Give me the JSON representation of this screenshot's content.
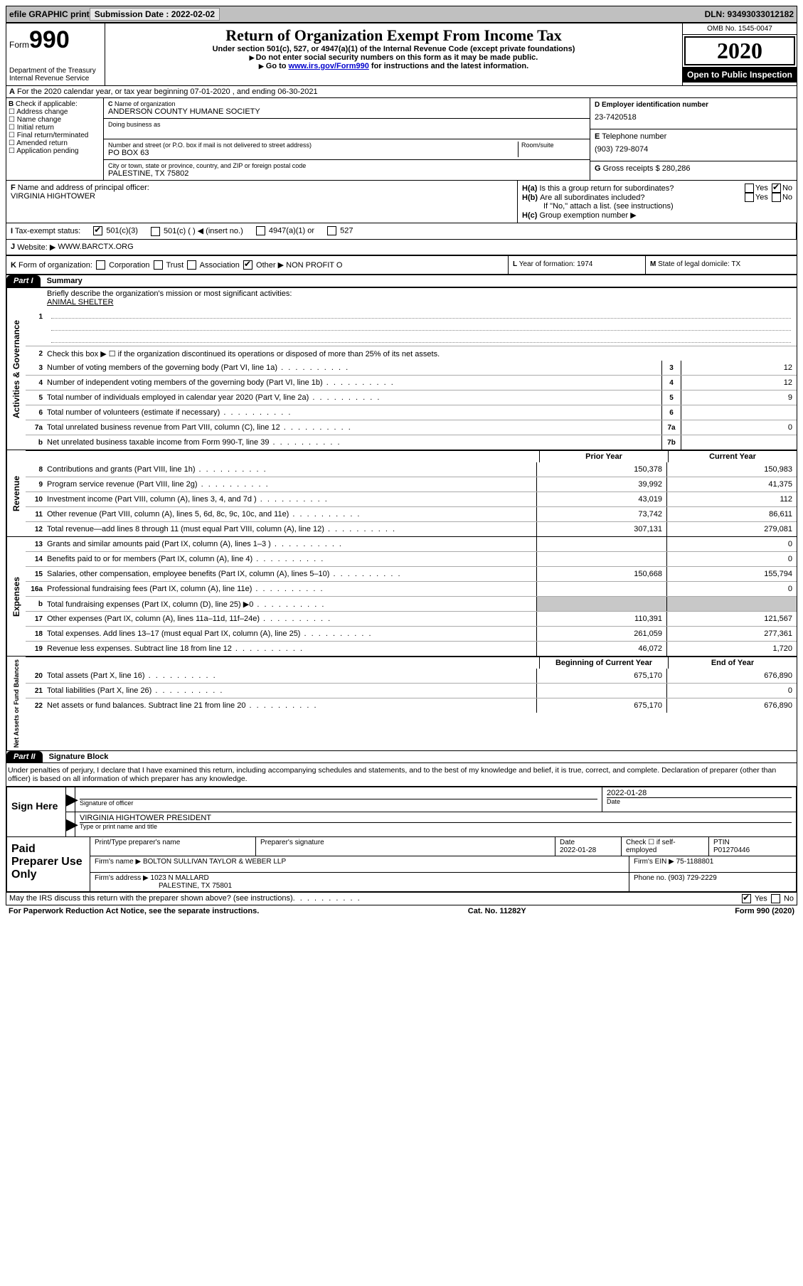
{
  "topbar": {
    "efile": "efile GRAPHIC print",
    "submission_label": "Submission Date : 2022-02-02",
    "dln_label": "DLN: 93493033012182"
  },
  "header": {
    "form_label": "Form",
    "form_number": "990",
    "dept": "Department of the Treasury Internal Revenue Service",
    "title": "Return of Organization Exempt From Income Tax",
    "subtitle": "Under section 501(c), 527, or 4947(a)(1) of the Internal Revenue Code (except private foundations)",
    "note1": "Do not enter social security numbers on this form as it may be made public.",
    "note2_pre": "Go to ",
    "note2_link": "www.irs.gov/Form990",
    "note2_post": " for instructions and the latest information.",
    "omb": "OMB No. 1545-0047",
    "year": "2020",
    "open_public": "Open to Public Inspection"
  },
  "lineA": "For the 2020 calendar year, or tax year beginning 07-01-2020   , and ending 06-30-2021",
  "boxB": {
    "label": "Check if applicable:",
    "opts": [
      "Address change",
      "Name change",
      "Initial return",
      "Final return/terminated",
      "Amended return",
      "Application pending"
    ]
  },
  "boxC": {
    "name_label": "Name of organization",
    "name": "ANDERSON COUNTY HUMANE SOCIETY",
    "dba_label": "Doing business as",
    "street_label": "Number and street (or P.O. box if mail is not delivered to street address)",
    "room_label": "Room/suite",
    "street": "PO BOX 63",
    "city_label": "City or town, state or province, country, and ZIP or foreign postal code",
    "city": "PALESTINE, TX  75802"
  },
  "boxD": {
    "label": "Employer identification number",
    "value": "23-7420518"
  },
  "boxE": {
    "label": "Telephone number",
    "value": "(903) 729-8074"
  },
  "boxG": {
    "label": "Gross receipts $",
    "value": "280,286"
  },
  "boxF": {
    "label": "Name and address of principal officer:",
    "value": "VIRGINIA HIGHTOWER"
  },
  "boxH": {
    "a": "Is this a group return for subordinates?",
    "b": "Are all subordinates included?",
    "b_note": "If \"No,\" attach a list. (see instructions)",
    "c": "Group exemption number ▶",
    "yes": "Yes",
    "no": "No"
  },
  "boxI": {
    "label": "Tax-exempt status:",
    "c3": "501(c)(3)",
    "c": "501(c) (   ) ◀ (insert no.)",
    "a1": "4947(a)(1) or",
    "s527": "527"
  },
  "boxJ": {
    "label": "Website: ▶",
    "value": "WWW.BARCTX.ORG"
  },
  "boxK": {
    "label": "Form of organization:",
    "corp": "Corporation",
    "trust": "Trust",
    "assoc": "Association",
    "other": "Other ▶",
    "other_val": "NON PROFIT O"
  },
  "boxL": {
    "label": "Year of formation:",
    "value": "1974"
  },
  "boxM": {
    "label": "State of legal domicile:",
    "value": "TX"
  },
  "part1": {
    "tag": "Part I",
    "title": "Summary"
  },
  "summary": {
    "q1": "Briefly describe the organization's mission or most significant activities:",
    "q1_val": "ANIMAL SHELTER",
    "q2": "Check this box ▶ ☐  if the organization discontinued its operations or disposed of more than 25% of its net assets.",
    "lines_single": [
      {
        "n": "3",
        "t": "Number of voting members of the governing body (Part VI, line 1a)",
        "box": "3",
        "v": "12"
      },
      {
        "n": "4",
        "t": "Number of independent voting members of the governing body (Part VI, line 1b)",
        "box": "4",
        "v": "12"
      },
      {
        "n": "5",
        "t": "Total number of individuals employed in calendar year 2020 (Part V, line 2a)",
        "box": "5",
        "v": "9"
      },
      {
        "n": "6",
        "t": "Total number of volunteers (estimate if necessary)",
        "box": "6",
        "v": ""
      },
      {
        "n": "7a",
        "t": "Total unrelated business revenue from Part VIII, column (C), line 12",
        "box": "7a",
        "v": "0"
      },
      {
        "n": "b",
        "t": "Net unrelated business taxable income from Form 990-T, line 39",
        "box": "7b",
        "v": ""
      }
    ],
    "colhdr_prior": "Prior Year",
    "colhdr_current": "Current Year",
    "revenue": [
      {
        "n": "8",
        "t": "Contributions and grants (Part VIII, line 1h)",
        "p": "150,378",
        "c": "150,983"
      },
      {
        "n": "9",
        "t": "Program service revenue (Part VIII, line 2g)",
        "p": "39,992",
        "c": "41,375"
      },
      {
        "n": "10",
        "t": "Investment income (Part VIII, column (A), lines 3, 4, and 7d )",
        "p": "43,019",
        "c": "112"
      },
      {
        "n": "11",
        "t": "Other revenue (Part VIII, column (A), lines 5, 6d, 8c, 9c, 10c, and 11e)",
        "p": "73,742",
        "c": "86,611"
      },
      {
        "n": "12",
        "t": "Total revenue—add lines 8 through 11 (must equal Part VIII, column (A), line 12)",
        "p": "307,131",
        "c": "279,081"
      }
    ],
    "expenses": [
      {
        "n": "13",
        "t": "Grants and similar amounts paid (Part IX, column (A), lines 1–3 )",
        "p": "",
        "c": "0"
      },
      {
        "n": "14",
        "t": "Benefits paid to or for members (Part IX, column (A), line 4)",
        "p": "",
        "c": "0"
      },
      {
        "n": "15",
        "t": "Salaries, other compensation, employee benefits (Part IX, column (A), lines 5–10)",
        "p": "150,668",
        "c": "155,794"
      },
      {
        "n": "16a",
        "t": "Professional fundraising fees (Part IX, column (A), line 11e)",
        "p": "",
        "c": "0"
      },
      {
        "n": "b",
        "t": "Total fundraising expenses (Part IX, column (D), line 25) ▶0",
        "p": "SHADE",
        "c": "SHADE"
      },
      {
        "n": "17",
        "t": "Other expenses (Part IX, column (A), lines 11a–11d, 11f–24e)",
        "p": "110,391",
        "c": "121,567"
      },
      {
        "n": "18",
        "t": "Total expenses. Add lines 13–17 (must equal Part IX, column (A), line 25)",
        "p": "261,059",
        "c": "277,361"
      },
      {
        "n": "19",
        "t": "Revenue less expenses. Subtract line 18 from line 12",
        "p": "46,072",
        "c": "1,720"
      }
    ],
    "colhdr_begin": "Beginning of Current Year",
    "colhdr_end": "End of Year",
    "netassets": [
      {
        "n": "20",
        "t": "Total assets (Part X, line 16)",
        "p": "675,170",
        "c": "676,890"
      },
      {
        "n": "21",
        "t": "Total liabilities (Part X, line 26)",
        "p": "",
        "c": "0"
      },
      {
        "n": "22",
        "t": "Net assets or fund balances. Subtract line 21 from line 20",
        "p": "675,170",
        "c": "676,890"
      }
    ],
    "vtab_ag": "Activities & Governance",
    "vtab_rev": "Revenue",
    "vtab_exp": "Expenses",
    "vtab_na": "Net Assets or Fund Balances"
  },
  "part2": {
    "tag": "Part II",
    "title": "Signature Block"
  },
  "penalty": "Under penalties of perjury, I declare that I have examined this return, including accompanying schedules and statements, and to the best of my knowledge and belief, it is true, correct, and complete. Declaration of preparer (other than officer) is based on all information of which preparer has any knowledge.",
  "sign": {
    "here": "Sign Here",
    "sig_label": "Signature of officer",
    "date_label": "Date",
    "date_val": "2022-01-28",
    "name": "VIRGINIA HIGHTOWER PRESIDENT",
    "name_label": "Type or print name and title"
  },
  "prep": {
    "left": "Paid Preparer Use Only",
    "r1_a": "Print/Type preparer's name",
    "r1_b": "Preparer's signature",
    "r1_c": "Date",
    "r1_c_val": "2022-01-28",
    "r1_d": "Check ☐ if self-employed",
    "r1_e": "PTIN",
    "r1_e_val": "P01270446",
    "r2_a": "Firm's name    ▶",
    "r2_a_val": "BOLTON SULLIVAN TAYLOR & WEBER LLP",
    "r2_b": "Firm's EIN ▶",
    "r2_b_val": "75-1188801",
    "r3_a": "Firm's address ▶",
    "r3_a_val": "1023 N MALLARD",
    "r3_a_val2": "PALESTINE, TX  75801",
    "r3_b": "Phone no.",
    "r3_b_val": "(903) 729-2229"
  },
  "discuss": "May the IRS discuss this return with the preparer shown above? (see instructions)",
  "footer": {
    "left": "For Paperwork Reduction Act Notice, see the separate instructions.",
    "mid": "Cat. No. 11282Y",
    "right": "Form 990 (2020)"
  }
}
